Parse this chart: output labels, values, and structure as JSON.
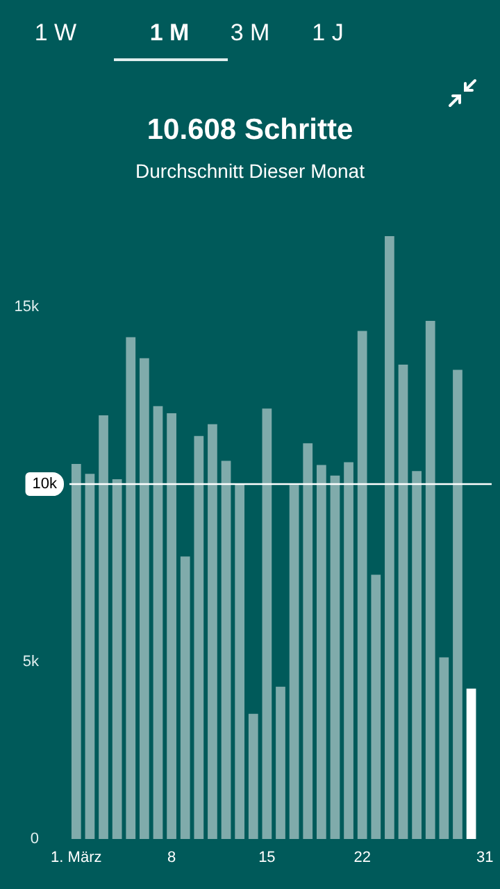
{
  "chart_data": {
    "type": "bar",
    "title": "10.608 Schritte",
    "subtitle": "Durchschnitt Dieser Monat",
    "annotations": [
      "1 W",
      "1 M",
      "3 M",
      "1 J"
    ],
    "categories": [
      "1. März",
      null,
      null,
      null,
      null,
      null,
      null,
      "8",
      null,
      null,
      null,
      null,
      null,
      null,
      "15",
      null,
      null,
      null,
      null,
      null,
      null,
      "22",
      null,
      null,
      null,
      null,
      null,
      null,
      null,
      null,
      "31"
    ],
    "values": [
      10570,
      10290,
      11940,
      10140,
      14140,
      13550,
      12200,
      12000,
      7960,
      11360,
      11690,
      10660,
      10010,
      3530,
      12130,
      4290,
      9980,
      11150,
      10540,
      10240,
      10620,
      14320,
      7450,
      16990,
      13370,
      10370,
      14600,
      5120,
      13220,
      4240,
      null
    ],
    "colors": [
      "#80abab",
      "#80abab",
      "#80abab",
      "#80abab",
      "#80abab",
      "#80abab",
      "#80abab",
      "#80abab",
      "#80abab",
      "#80abab",
      "#80abab",
      "#80abab",
      "#80abab",
      "#80abab",
      "#80abab",
      "#80abab",
      "#80abab",
      "#80abab",
      "#80abab",
      "#80abab",
      "#80abab",
      "#80abab",
      "#80abab",
      "#80abab",
      "#80abab",
      "#80abab",
      "#80abab",
      "#80abab",
      "#80abab",
      "#ffffff",
      "#80abab"
    ],
    "yticks": [
      0,
      {
        "value": 5000,
        "label": "5k"
      },
      {
        "value": 15000,
        "label": "15k"
      }
    ],
    "ref_lines": [
      {
        "axis": "y",
        "value": 10000,
        "label": "10k",
        "color": "#ffffff"
      }
    ],
    "ylim": [
      0,
      16990
    ],
    "grid": false
  }
}
